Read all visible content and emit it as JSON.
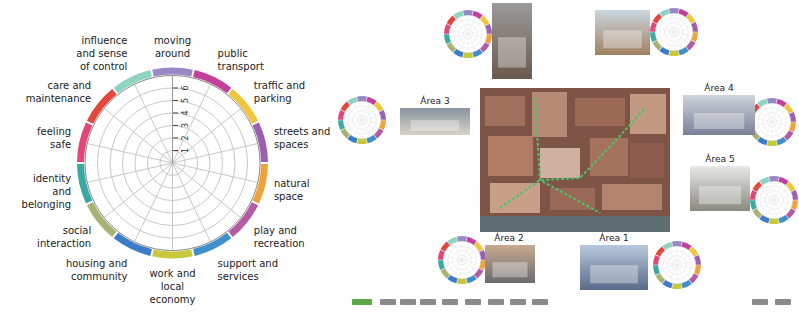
{
  "chart_data": {
    "type": "polar",
    "categories": [
      "moving around",
      "public transport",
      "traffic and parking",
      "streets and spaces",
      "natural space",
      "play and recreation",
      "support and services",
      "work and local economy",
      "housing and community",
      "social interaction",
      "identity and belonging",
      "feeling safe",
      "care and maintenance",
      "influence and sense of control"
    ],
    "colors": [
      "#9b86c8",
      "#c2409c",
      "#f1c63f",
      "#9a5fb0",
      "#f0a23a",
      "#b45aa6",
      "#3f8fcc",
      "#c9c83c",
      "#3c7cc6",
      "#a9b173",
      "#3aa9a2",
      "#e2477c",
      "#e2463f",
      "#8fd3c2"
    ],
    "ylim": [
      0,
      7
    ],
    "yticks": [
      1,
      2,
      3,
      4,
      5,
      6
    ],
    "grid": true
  },
  "areas": [
    "Área 3",
    "Área 4",
    "Área 5",
    "Área 2",
    "Área 1"
  ]
}
